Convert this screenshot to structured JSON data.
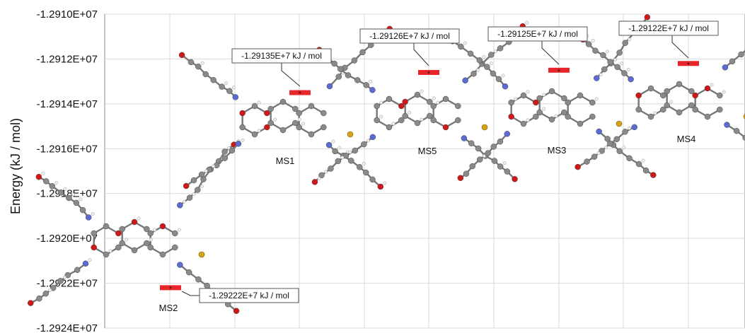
{
  "chart_data": {
    "type": "scatter",
    "xlabel": "",
    "ylabel": "Energy (kJ / mol)",
    "ylim": [
      -12924000,
      -12910000
    ],
    "yticks": [
      "-1.2910E+07",
      "-1.2912E+07",
      "-1.2914E+07",
      "-1.2916E+07",
      "-1.2918E+07",
      "-1.2920E+07",
      "-1.2922E+07",
      "-1.2924E+07"
    ],
    "grid": true,
    "points": [
      {
        "label": "MS2",
        "energy": -12922200,
        "annotation": "-1.29222E+7 kJ / mol"
      },
      {
        "label": "MS1",
        "energy": -12913500,
        "annotation": "-1.29135E+7 kJ / mol"
      },
      {
        "label": "MS5",
        "energy": -12912600,
        "annotation": "-1.29126E+7 kJ / mol"
      },
      {
        "label": "MS3",
        "energy": -12912500,
        "annotation": "-1.29125E+7 kJ / mol"
      },
      {
        "label": "MS4",
        "energy": -12912200,
        "annotation": "-1.29122E+7 kJ / mol"
      }
    ],
    "marker_color": "#e8252a"
  }
}
